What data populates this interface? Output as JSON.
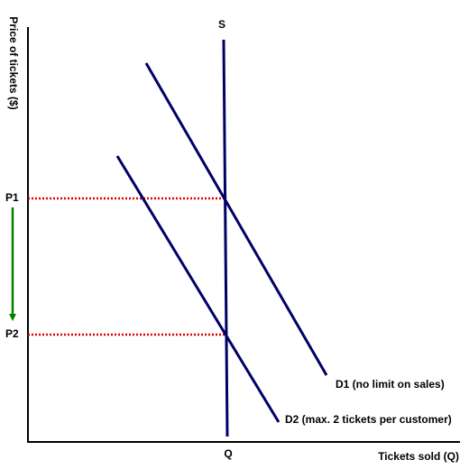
{
  "axes": {
    "y_label": "Price of tickets ($)",
    "x_label": "Tickets sold (Q)"
  },
  "curves": {
    "supply": "S",
    "d1": "D1 (no limit on sales)",
    "d2": "D2 (max. 2 tickets per customer)"
  },
  "levels": {
    "p1": "P1",
    "p2": "P2",
    "q": "Q"
  }
}
